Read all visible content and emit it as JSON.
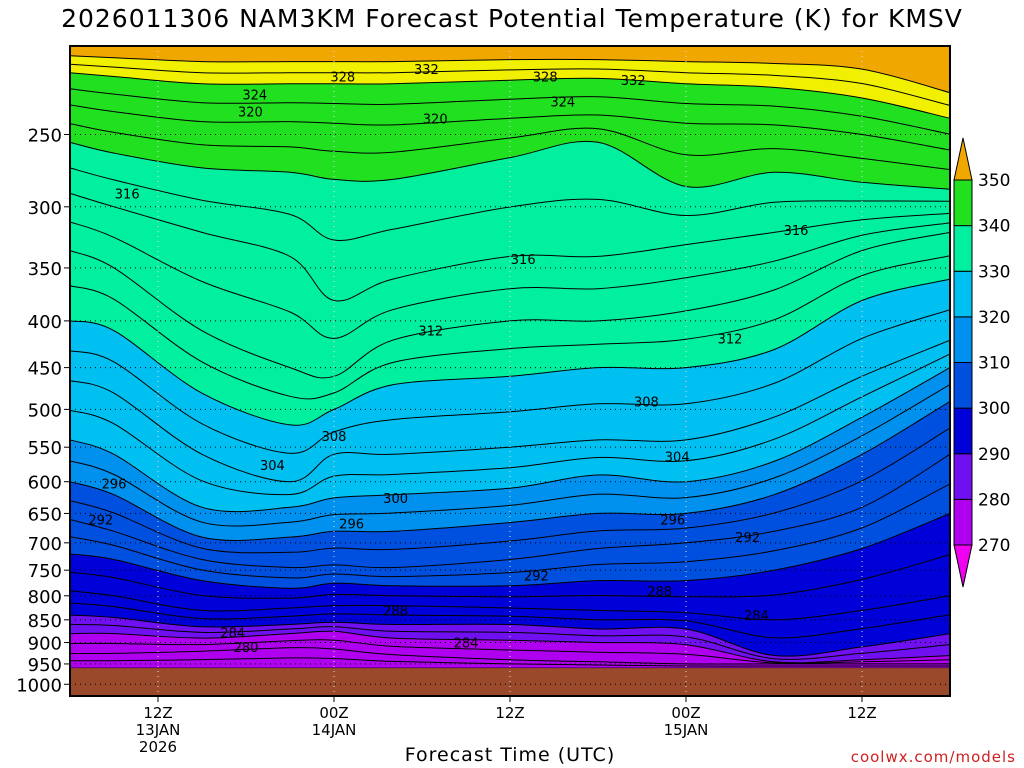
{
  "title": "2026011306 NAM3KM Forecast Potential Temperature (K) for KMSV",
  "credit": "coolwx.com/models",
  "colors": {
    "ground": "#9a4a2a",
    "contour_line": "#000000"
  },
  "chart_data": {
    "type": "filled-contour",
    "xlabel": "Forecast Time (UTC)",
    "ylabel": "",
    "x_ticks": [
      {
        "hour": 6,
        "label": [
          "12Z",
          "13JAN",
          "2026"
        ]
      },
      {
        "hour": 18,
        "label": [
          "00Z",
          "14JAN"
        ]
      },
      {
        "hour": 30,
        "label": [
          "12Z"
        ]
      },
      {
        "hour": 42,
        "label": [
          "00Z",
          "15JAN"
        ]
      },
      {
        "hour": 54,
        "label": [
          "12Z"
        ]
      }
    ],
    "x_range_hours": [
      0,
      60
    ],
    "y_axis": "pressure (hPa), logarithmic, reversed",
    "y_ticks": [
      250,
      300,
      350,
      400,
      450,
      500,
      550,
      600,
      650,
      700,
      750,
      800,
      850,
      900,
      950,
      1000
    ],
    "y_range": [
      200,
      1030
    ],
    "surface_pressure": 960,
    "grid": "dotted",
    "colorbar": {
      "placement": "right",
      "levels": [
        270,
        280,
        290,
        300,
        310,
        320,
        330,
        340,
        350
      ],
      "labels": [
        "270",
        "280",
        "290",
        "300",
        "310",
        "320",
        "330",
        "340",
        "350"
      ],
      "colors": [
        "#f000f0",
        "#b000f0",
        "#7010f0",
        "#0000d8",
        "#0050e0",
        "#0090ee",
        "#00c0f2",
        "#00f0a0",
        "#20e020",
        "#f0f000",
        "#f0a800"
      ]
    },
    "fill_colors_by_band": {
      "270-280": "#f000f0",
      "280-285": "#b000f0",
      "285-290": "#7010f0",
      "290-300": "#0000d8",
      "300-305": "#0050e0",
      "305-310": "#0090ee",
      "310-320": "#00c0f2",
      "320-330": "#00f0a0",
      "330-340": "#20e020",
      "340-345": "#f0f000",
      "345-350": "#f0a800"
    },
    "contour_interval": 2,
    "columns": [
      {
        "hour": 0,
        "p": [
          1000,
          960,
          925,
          880,
          840,
          790,
          720,
          660,
          600,
          540,
          465,
          400,
          335,
          290,
          255,
          232,
          214,
          205
        ]
      },
      {
        "hour": 3,
        "p": [
          1000,
          960,
          925,
          880,
          845,
          800,
          730,
          680,
          620,
          560,
          480,
          410,
          350,
          300,
          262,
          236,
          216,
          206
        ]
      },
      {
        "hour": 9,
        "p": [
          1000,
          960,
          920,
          890,
          865,
          830,
          770,
          730,
          690,
          640,
          560,
          480,
          410,
          320,
          272,
          242,
          220,
          208
        ]
      },
      {
        "hour": 15,
        "p": [
          1000,
          960,
          912,
          880,
          860,
          825,
          785,
          745,
          690,
          640,
          600,
          520,
          450,
          340,
          275,
          242,
          220,
          208
        ]
      },
      {
        "hour": 18,
        "p": [
          1000,
          960,
          915,
          875,
          855,
          820,
          775,
          740,
          680,
          625,
          560,
          500,
          460,
          380,
          280,
          243,
          220,
          208
        ]
      },
      {
        "hour": 22,
        "p": [
          1000,
          960,
          928,
          890,
          860,
          820,
          780,
          745,
          680,
          620,
          560,
          470,
          420,
          360,
          280,
          244,
          220,
          208
        ]
      },
      {
        "hour": 30,
        "p": [
          1000,
          960,
          940,
          895,
          860,
          825,
          780,
          730,
          665,
          610,
          550,
          460,
          400,
          340,
          265,
          240,
          218,
          207
        ]
      },
      {
        "hour": 36,
        "p": [
          1000,
          960,
          945,
          900,
          870,
          830,
          770,
          710,
          650,
          590,
          540,
          450,
          400,
          340,
          255,
          238,
          217,
          207
        ]
      },
      {
        "hour": 42,
        "p": [
          1000,
          960,
          950,
          905,
          870,
          835,
          770,
          700,
          650,
          600,
          540,
          450,
          390,
          330,
          285,
          243,
          220,
          208
        ]
      },
      {
        "hour": 48,
        "p": [
          1000,
          960,
          950,
          945,
          930,
          850,
          750,
          680,
          620,
          570,
          510,
          430,
          370,
          320,
          275,
          244,
          222,
          209
        ]
      },
      {
        "hour": 54,
        "p": [
          1000,
          960,
          950,
          940,
          910,
          830,
          710,
          640,
          560,
          510,
          460,
          380,
          335,
          310,
          282,
          250,
          228,
          212
        ]
      },
      {
        "hour": 60,
        "p": [
          1000,
          960,
          950,
          930,
          880,
          800,
          650,
          560,
          490,
          450,
          420,
          360,
          320,
          305,
          287,
          260,
          240,
          225
        ]
      }
    ],
    "contour_labels": [
      {
        "value": "332",
        "hour": 24.3,
        "p": 212
      },
      {
        "value": "328",
        "hour": 18.6,
        "p": 216
      },
      {
        "value": "328",
        "hour": 32.4,
        "p": 216
      },
      {
        "value": "332",
        "hour": 38.4,
        "p": 218
      },
      {
        "value": "324",
        "hour": 12.6,
        "p": 226
      },
      {
        "value": "324",
        "hour": 33.6,
        "p": 230
      },
      {
        "value": "320",
        "hour": 12.3,
        "p": 236
      },
      {
        "value": "320",
        "hour": 24.9,
        "p": 240
      },
      {
        "value": "316",
        "hour": 3.9,
        "p": 290
      },
      {
        "value": "316",
        "hour": 49.5,
        "p": 318
      },
      {
        "value": "316",
        "hour": 30.9,
        "p": 342
      },
      {
        "value": "312",
        "hour": 24.6,
        "p": 410
      },
      {
        "value": "312",
        "hour": 45.0,
        "p": 418
      },
      {
        "value": "308",
        "hour": 39.3,
        "p": 490
      },
      {
        "value": "308",
        "hour": 18.0,
        "p": 535
      },
      {
        "value": "304",
        "hour": 13.8,
        "p": 575
      },
      {
        "value": "304",
        "hour": 41.4,
        "p": 563
      },
      {
        "value": "300",
        "hour": 22.2,
        "p": 625
      },
      {
        "value": "296",
        "hour": 3.0,
        "p": 603
      },
      {
        "value": "296",
        "hour": 19.2,
        "p": 667
      },
      {
        "value": "296",
        "hour": 41.1,
        "p": 660
      },
      {
        "value": "292",
        "hour": 2.1,
        "p": 660
      },
      {
        "value": "292",
        "hour": 46.2,
        "p": 690
      },
      {
        "value": "292",
        "hour": 31.8,
        "p": 760
      },
      {
        "value": "288",
        "hour": 40.2,
        "p": 790
      },
      {
        "value": "288",
        "hour": 22.2,
        "p": 830
      },
      {
        "value": "284",
        "hour": 46.8,
        "p": 840
      },
      {
        "value": "284",
        "hour": 11.1,
        "p": 878
      },
      {
        "value": "284",
        "hour": 27.0,
        "p": 900
      },
      {
        "value": "280",
        "hour": 12.0,
        "p": 910
      }
    ]
  }
}
